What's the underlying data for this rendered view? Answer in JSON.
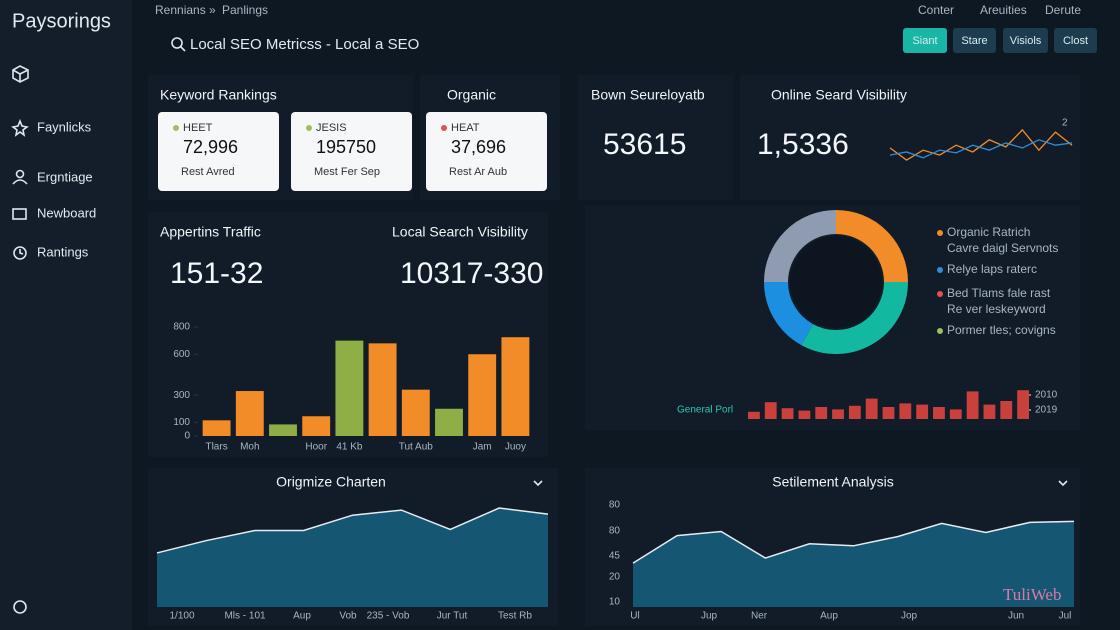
{
  "sidebar": {
    "brand": "Paysorings",
    "items": [
      "Faynlicks",
      "Ergntiage",
      "Newboard",
      "Rantings"
    ]
  },
  "header": {
    "breadcrumb": [
      "Rennians",
      "Panlings"
    ],
    "search": "Local SEO Metricss - Local a SEO",
    "nav": [
      "Conter",
      "Areuities",
      "Derute"
    ],
    "buttons": [
      "Siant",
      "Stare",
      "Visiols",
      "Clost"
    ]
  },
  "keyword_rankings": {
    "title": "Keyword Rankings",
    "cards": [
      {
        "tag": "HEET",
        "value": "72,996",
        "note": "Rest Avred",
        "color": "#9bc25a"
      },
      {
        "tag": "JESIS",
        "value": "195750",
        "note": "Mest Fer Sep",
        "color": "#9bc25a"
      },
      {
        "tag": "HEAT",
        "value": "37,696",
        "note": "Rest Ar Aub",
        "color": "#e0524a"
      }
    ]
  },
  "organic": {
    "title": "Organic"
  },
  "stats": [
    {
      "title": "Bown Seureloyatb",
      "value": "53615"
    },
    {
      "title": "Online Seard Visibility",
      "value": "1,5336"
    },
    {
      "title": "Appertins Traffic",
      "value": "151-32"
    },
    {
      "title": "Local Search Visibility",
      "value": "10317-330"
    }
  ],
  "visibility_chart": {
    "type": "line",
    "label": "2",
    "ylim": [
      0,
      100
    ],
    "series": [
      {
        "color": "#f28c28",
        "values": [
          38,
          11,
          33,
          22,
          44,
          29,
          56,
          40,
          78,
          33,
          73,
          44
        ]
      },
      {
        "color": "#2d8fd6",
        "values": [
          22,
          29,
          16,
          33,
          27,
          44,
          33,
          49,
          38,
          56,
          44,
          49
        ]
      }
    ]
  },
  "traffic_chart": {
    "type": "bar",
    "categories": [
      "Tlars",
      "Moh",
      null,
      "Hoor",
      "41 Kb",
      null,
      "Tut Aub",
      null,
      "Jam",
      "Juoy"
    ],
    "values": [
      115,
      330,
      85,
      145,
      700,
      680,
      340,
      200,
      600,
      725
    ],
    "colors": [
      "#f28c28",
      "#f28c28",
      "#8fae45",
      "#f28c28",
      "#8fae45",
      "#f28c28",
      "#f28c28",
      "#8fae45",
      "#f28c28",
      "#f28c28"
    ],
    "ylim": [
      0,
      800
    ],
    "yticks": [
      0,
      100,
      300,
      600,
      800
    ]
  },
  "share_chart": {
    "type": "pie",
    "values": [
      25,
      33,
      17,
      25
    ],
    "colors": [
      "#f28c28",
      "#13b8a0",
      "#1d8fe0",
      "#8f9bb0"
    ],
    "legend": [
      {
        "label": "Organic Ratrich",
        "sublabel": "Cavre daigl Servnots",
        "color": "#f28c28"
      },
      {
        "label": "Relye laps raterc",
        "color": "#2d8fd6"
      },
      {
        "label": "Bed Tlams fale rast",
        "sublabel": "Re ver leskeyword",
        "color": "#e0524a"
      },
      {
        "label": "Pormer tles; covigns",
        "color": "#9bc25a"
      }
    ]
  },
  "portfolio_chart": {
    "type": "bar",
    "label": "General Porl",
    "legend": [
      "2010",
      "2019"
    ],
    "color": "#c9403c",
    "ylim": [
      0,
      30
    ],
    "values": [
      6,
      14,
      9,
      7,
      10,
      8,
      11,
      17,
      10,
      13,
      12,
      10,
      8,
      23,
      12,
      15,
      24
    ]
  },
  "origin_chart": {
    "type": "area",
    "title": "Origmize Charten",
    "x_labels": [
      "1/100",
      "Mls - 101",
      "Aup",
      "Vob",
      "235 - Vob",
      "Jur Tut",
      "Test Rb"
    ],
    "ylim": [
      0,
      100
    ],
    "values": [
      53,
      65,
      75,
      75,
      90,
      95,
      76,
      97,
      91
    ]
  },
  "sentiment_chart": {
    "type": "area",
    "title": "Setilement Analysis",
    "y_labels": [
      "80",
      "80",
      "45",
      "20",
      "10"
    ],
    "x_labels": [
      "Ul",
      "Jup",
      "Ner",
      "Aup",
      "Jop",
      "Jun",
      "Jul"
    ],
    "ylim": [
      0,
      100
    ],
    "values": [
      43,
      70,
      74,
      48,
      62,
      60,
      69,
      82,
      73,
      83,
      84
    ]
  },
  "watermark": "TuliWeb"
}
